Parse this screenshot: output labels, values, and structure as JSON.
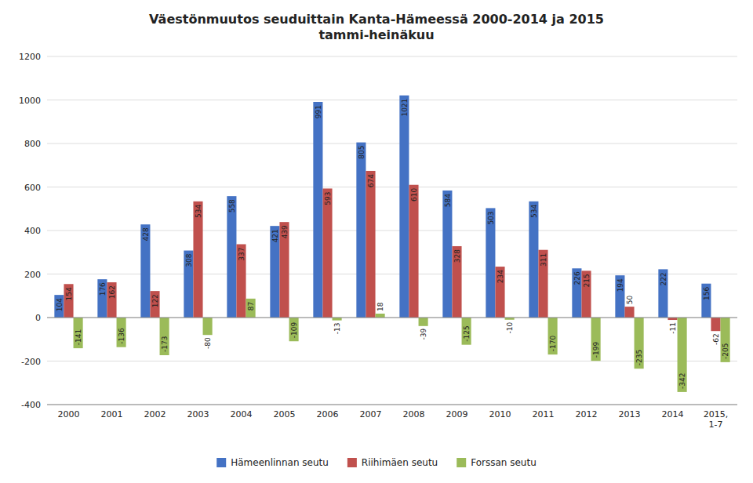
{
  "chart_data": {
    "type": "bar",
    "title": "Väestönmuutos seuduittain Kanta-Hämeessä 2000-2014 ja 2015\ntammi-heinäkuu",
    "categories": [
      "2000",
      "2001",
      "2002",
      "2003",
      "2004",
      "2005",
      "2006",
      "2007",
      "2008",
      "2009",
      "2010",
      "2011",
      "2012",
      "2013",
      "2014",
      "2015,\n1-7"
    ],
    "series": [
      {
        "name": "Hämeenlinnan seutu",
        "color": "#4472C4",
        "values": [
          104,
          176,
          428,
          308,
          558,
          421,
          991,
          805,
          1021,
          584,
          503,
          534,
          226,
          194,
          222,
          156
        ]
      },
      {
        "name": "Riihimäen seutu",
        "color": "#C0504D",
        "values": [
          154,
          162,
          122,
          534,
          337,
          439,
          593,
          674,
          610,
          328,
          234,
          311,
          215,
          50,
          -11,
          -62
        ]
      },
      {
        "name": "Forssan seutu",
        "color": "#9BBB59",
        "values": [
          -141,
          -136,
          -173,
          -80,
          87,
          -109,
          -13,
          18,
          -39,
          -125,
          -10,
          -170,
          -199,
          -235,
          -342,
          -205
        ]
      }
    ],
    "ylim": [
      -400,
      1200
    ],
    "yticks": [
      -400,
      -200,
      0,
      200,
      400,
      600,
      800,
      1000,
      1200
    ],
    "grid": true,
    "data_labels": true,
    "legend": "bottom"
  }
}
